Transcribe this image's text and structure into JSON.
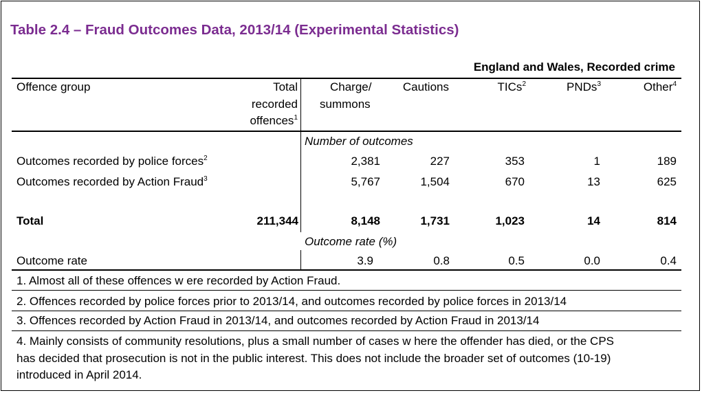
{
  "title": "Table 2.4 – Fraud Outcomes Data, 2013/14 (Experimental Statistics)",
  "subtitle": "England and Wales, Recorded crime",
  "headers": {
    "offence_group": "Offence group",
    "total": [
      "Total",
      "recorded",
      "offences"
    ],
    "total_sup": "1",
    "charge": [
      "Charge/",
      "summons"
    ],
    "cautions": "Cautions",
    "tics": "TICs",
    "tics_sup": "2",
    "pnds": "PNDs",
    "pnds_sup": "3",
    "other": "Other",
    "other_sup": "4"
  },
  "section_counts": "Number of outcomes",
  "section_rate": "Outcome rate (%)",
  "rows": [
    {
      "label": "Outcomes recorded by police forces",
      "sup": "2",
      "total": "",
      "values": [
        "2,381",
        "227",
        "353",
        "1",
        "189"
      ]
    },
    {
      "label": "Outcomes recorded by Action Fraud",
      "sup": "3",
      "total": "",
      "values": [
        "5,767",
        "1,504",
        "670",
        "13",
        "625"
      ]
    }
  ],
  "total_row": {
    "label": "Total",
    "total": "211,344",
    "values": [
      "8,148",
      "1,731",
      "1,023",
      "14",
      "814"
    ]
  },
  "rate_row": {
    "label": "Outcome rate",
    "values": [
      "3.9",
      "0.8",
      "0.5",
      "0.0",
      "0.4"
    ]
  },
  "footnotes": [
    "1. Almost all of these offences w ere recorded by Action Fraud.",
    "2. Offences recorded by police forces prior to 2013/14, and outcomes recorded by police forces in 2013/14",
    "3. Offences recorded by Action Fraud in 2013/14, and outcomes recorded by Action Fraud in 2013/14",
    "4. Mainly consists of community resolutions, plus a small number of cases w here the offender has died, or the CPS",
    "has decided that prosecution is not in the public interest. This does not include the broader set of outcomes (10-19)",
    "introduced in  April 2014."
  ]
}
